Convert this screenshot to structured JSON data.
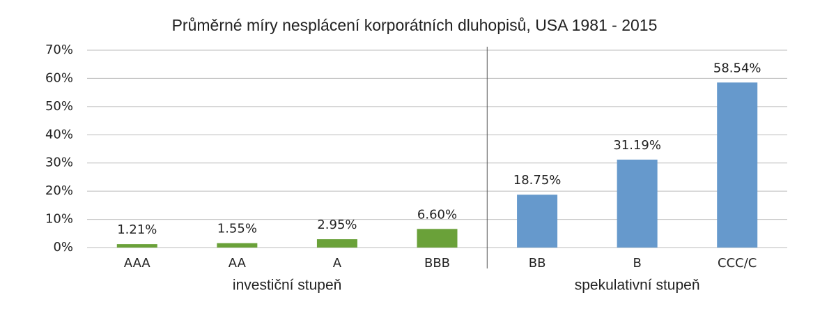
{
  "chart_data": {
    "type": "bar",
    "title": "Průměrné míry nesplácení korporátních dluhopisů, USA 1981 - 2015",
    "groups": [
      {
        "label": "investiční stupeň",
        "color": "#6aa139",
        "categories": [
          "AAA",
          "AA",
          "A",
          "BBB"
        ],
        "values": [
          1.21,
          1.55,
          2.95,
          6.6
        ],
        "value_labels": [
          "1.21%",
          "1.55%",
          "2.95%",
          "6.60%"
        ]
      },
      {
        "label": "spekulativní stupeň",
        "color": "#6699cc",
        "categories": [
          "BB",
          "B",
          "CCC/C"
        ],
        "values": [
          18.75,
          31.19,
          58.54
        ],
        "value_labels": [
          "18.75%",
          "31.19%",
          "58.54%"
        ]
      }
    ],
    "ylim": [
      0,
      70
    ],
    "yticks": [
      {
        "value": 0,
        "label": "0%"
      },
      {
        "value": 10,
        "label": "10%"
      },
      {
        "value": 20,
        "label": "20%"
      },
      {
        "value": 30,
        "label": "30%"
      },
      {
        "value": 40,
        "label": "40%"
      },
      {
        "value": 50,
        "label": "50%"
      },
      {
        "value": 60,
        "label": "60%"
      },
      {
        "value": 70,
        "label": "70%"
      }
    ],
    "grid": true
  }
}
